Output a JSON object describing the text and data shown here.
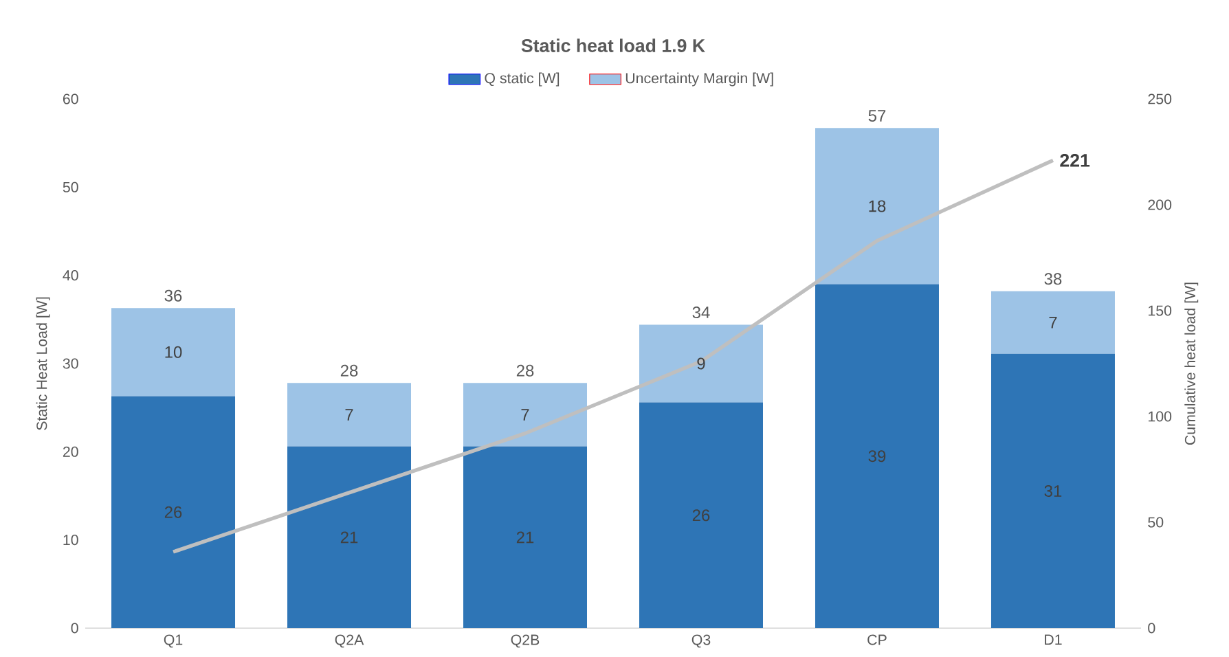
{
  "chart_data": {
    "type": "bar",
    "title": "Static heat load 1.9 K",
    "ylabel": "Static Heat Load [W]",
    "y2label": "Cumulative heat load [W]",
    "categories": [
      "Q1",
      "Q2A",
      "Q2B",
      "Q3",
      "CP",
      "D1"
    ],
    "stacked": true,
    "legend": "top",
    "grid": false,
    "ylim": [
      0,
      60
    ],
    "yticks": [
      0,
      10,
      20,
      30,
      40,
      50,
      60
    ],
    "y2lim": [
      0,
      250
    ],
    "y2ticks": [
      0,
      50,
      100,
      150,
      200,
      250
    ],
    "series": [
      {
        "name": "Q static [W]",
        "color": "#2e75b6",
        "values": [
          26.3,
          20.6,
          20.6,
          25.6,
          39.0,
          31.1
        ],
        "value_labels": [
          "26",
          "21",
          "21",
          "26",
          "39",
          "31"
        ]
      },
      {
        "name": "Uncertainty Margin [W]",
        "color": "#9dc3e6",
        "values": [
          10.0,
          7.2,
          7.2,
          8.8,
          17.7,
          7.1
        ],
        "value_labels": [
          "10",
          "7",
          "7",
          "9",
          "18",
          "7"
        ]
      },
      {
        "type": "line",
        "axis": "y2",
        "color": "#bfbfbf",
        "values": [
          36,
          64,
          92,
          126,
          183,
          221
        ],
        "value_labels": [
          null,
          null,
          null,
          null,
          null,
          "221"
        ]
      }
    ],
    "totals": [
      "36",
      "28",
      "28",
      "34",
      "57",
      "38"
    ]
  }
}
